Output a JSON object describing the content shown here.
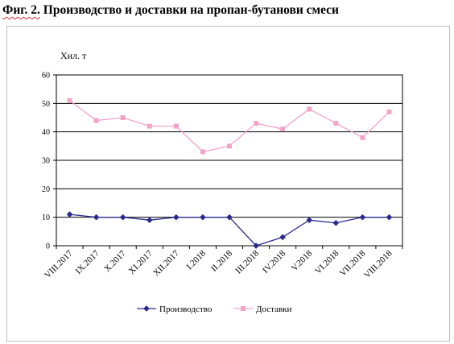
{
  "figure": {
    "label": "Фиг. 2.",
    "caption": "Производство и доставки на пропан-бутанови смеси"
  },
  "chart_data": {
    "type": "line",
    "ylabel": "Хил. т",
    "xlabel": "",
    "ylim": [
      0,
      60
    ],
    "yticks": [
      0,
      10,
      20,
      30,
      40,
      50,
      60
    ],
    "grid": "horizontal",
    "legend_position": "bottom",
    "categories": [
      "VIII.2017",
      "IX.2017",
      "X.2017",
      "XI.2017",
      "XII.2017",
      "I.2018",
      "II.2018",
      "III.2018",
      "IV.2018",
      "V.2018",
      "VI.2018",
      "VII.2018",
      "VIII.2018"
    ],
    "series": [
      {
        "name": "Производство",
        "color": "#2b2b8f",
        "marker": "diamond",
        "values": [
          11,
          10,
          10,
          9,
          10,
          10,
          10,
          0,
          3,
          9,
          8,
          10,
          10
        ]
      },
      {
        "name": "Доставки",
        "color": "#f4a3c8",
        "marker": "square",
        "values": [
          51,
          44,
          45,
          42,
          42,
          33,
          35,
          43,
          41,
          48,
          43,
          38,
          47
        ]
      }
    ]
  }
}
